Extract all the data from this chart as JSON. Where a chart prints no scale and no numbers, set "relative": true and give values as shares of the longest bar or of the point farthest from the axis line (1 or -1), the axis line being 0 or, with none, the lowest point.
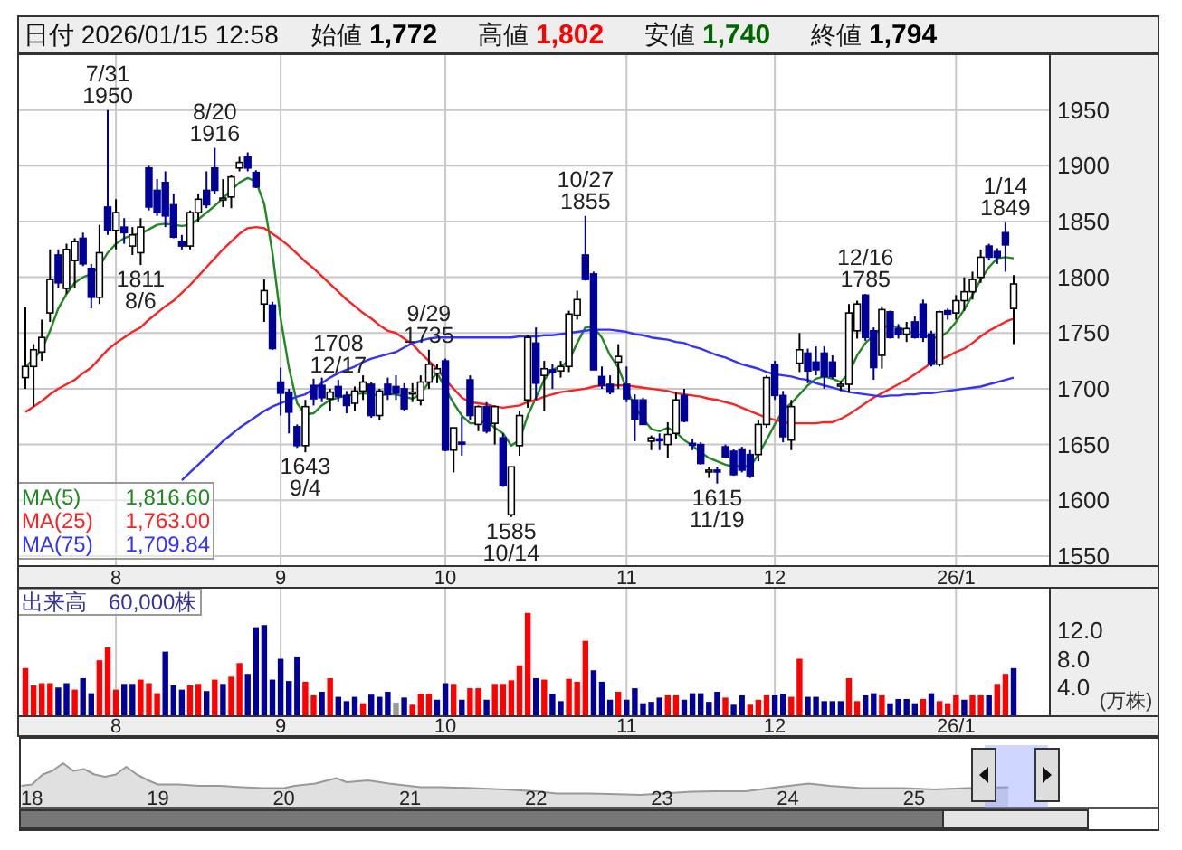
{
  "chart_data": [
    {
      "type": "candlestick",
      "title": "日付 2026/01/15 12:58",
      "annotations": [
        "始値 1,772",
        "高値 1,802",
        "安値 1,740",
        "終値 1,794",
        {
          "text": "7/31\n1950",
          "y": 1950
        },
        {
          "text": "1811\n8/6",
          "y": 1811
        },
        {
          "text": "8/20\n1916",
          "y": 1916
        },
        {
          "text": "1643\n9/4",
          "y": 1643
        },
        {
          "text": "9/29\n1735",
          "y": 1735
        },
        {
          "text": "1585\n10/14",
          "y": 1585
        },
        {
          "text": "10/27\n1855",
          "y": 1855
        },
        {
          "text": "1615\n11/19",
          "y": 1615
        },
        {
          "text": "12/16\n1785",
          "y": 1785
        },
        {
          "text": "1708\n12/17",
          "y": 1708
        },
        {
          "text": "1/14\n1849",
          "y": 1849
        }
      ],
      "categories": [
        null,
        null,
        null,
        null,
        null,
        null,
        null,
        null,
        null,
        null,
        null,
        "8",
        null,
        null,
        null,
        null,
        null,
        null,
        null,
        null,
        null,
        null,
        null,
        null,
        null,
        null,
        null,
        null,
        null,
        null,
        null,
        "9",
        null,
        null,
        null,
        null,
        null,
        null,
        null,
        null,
        null,
        null,
        null,
        null,
        null,
        null,
        null,
        null,
        null,
        null,
        null,
        "10",
        null,
        null,
        null,
        null,
        null,
        null,
        null,
        null,
        null,
        null,
        null,
        null,
        null,
        null,
        null,
        null,
        null,
        null,
        null,
        null,
        null,
        "11",
        null,
        null,
        null,
        null,
        null,
        null,
        null,
        null,
        null,
        null,
        null,
        null,
        null,
        null,
        null,
        null,
        null,
        "12",
        null,
        null,
        null,
        null,
        null,
        null,
        null,
        null,
        null,
        null,
        null,
        null,
        null,
        null,
        null,
        null,
        null,
        null,
        null,
        null,
        null,
        "26/1",
        null,
        null,
        null,
        null,
        null,
        null,
        null
      ],
      "ohlc": [
        [
          1710,
          1773,
          1700,
          1720
        ],
        [
          1720,
          1740,
          1684,
          1735
        ],
        [
          1733,
          1762,
          1725,
          1746
        ],
        [
          1768,
          1825,
          1760,
          1798
        ],
        [
          1820,
          1825,
          1790,
          1795
        ],
        [
          1790,
          1830,
          1785,
          1825
        ],
        [
          1815,
          1835,
          1790,
          1832
        ],
        [
          1835,
          1840,
          1810,
          1812
        ],
        [
          1808,
          1812,
          1772,
          1782
        ],
        [
          1782,
          1847,
          1776,
          1822
        ],
        [
          1863,
          1950,
          1838,
          1842
        ],
        [
          1842,
          1870,
          1825,
          1858
        ],
        [
          1845,
          1853,
          1830,
          1840
        ],
        [
          1828,
          1845,
          1820,
          1838
        ],
        [
          1822,
          1853,
          1811,
          1845
        ],
        [
          1898,
          1900,
          1860,
          1863
        ],
        [
          1878,
          1888,
          1855,
          1858
        ],
        [
          1885,
          1895,
          1845,
          1855
        ],
        [
          1865,
          1875,
          1835,
          1836
        ],
        [
          1832,
          1838,
          1825,
          1828
        ],
        [
          1828,
          1860,
          1825,
          1858
        ],
        [
          1858,
          1875,
          1850,
          1870
        ],
        [
          1878,
          1895,
          1862,
          1865
        ],
        [
          1898,
          1916,
          1875,
          1878
        ],
        [
          1870,
          1888,
          1863,
          1871
        ],
        [
          1872,
          1892,
          1862,
          1890
        ],
        [
          1898,
          1908,
          1895,
          1903
        ],
        [
          1908,
          1912,
          1895,
          1898
        ],
        [
          1894,
          1896,
          1880,
          1881
        ],
        [
          1776,
          1798,
          1760,
          1788
        ],
        [
          1775,
          1778,
          1735,
          1736
        ],
        [
          1706,
          1719,
          1676,
          1696
        ],
        [
          1697,
          1700,
          1660,
          1679
        ],
        [
          1666,
          1668,
          1647,
          1649
        ],
        [
          1649,
          1690,
          1643,
          1684
        ],
        [
          1703,
          1709,
          1685,
          1691
        ],
        [
          1703,
          1710,
          1688,
          1692
        ],
        [
          1691,
          1700,
          1680,
          1697
        ],
        [
          1702,
          1708,
          1688,
          1693
        ],
        [
          1694,
          1698,
          1678,
          1685
        ],
        [
          1687,
          1702,
          1680,
          1698
        ],
        [
          1698,
          1712,
          1690,
          1706
        ],
        [
          1704,
          1706,
          1674,
          1676
        ],
        [
          1676,
          1700,
          1672,
          1698
        ],
        [
          1704,
          1710,
          1690,
          1695
        ],
        [
          1702,
          1712,
          1690,
          1696
        ],
        [
          1700,
          1705,
          1680,
          1682
        ],
        [
          1696,
          1705,
          1688,
          1697
        ],
        [
          1690,
          1712,
          1685,
          1706
        ],
        [
          1706,
          1735,
          1700,
          1722
        ],
        [
          1714,
          1722,
          1705,
          1718
        ],
        [
          1725,
          1727,
          1644,
          1645
        ],
        [
          1645,
          1665,
          1625,
          1665
        ],
        [
          1652,
          1675,
          1640,
          1651
        ],
        [
          1708,
          1712,
          1672,
          1676
        ],
        [
          1668,
          1685,
          1662,
          1684
        ],
        [
          1684,
          1688,
          1660,
          1662
        ],
        [
          1669,
          1685,
          1650,
          1684
        ],
        [
          1656,
          1660,
          1612,
          1613
        ],
        [
          1587,
          1630,
          1585,
          1630
        ],
        [
          1649,
          1680,
          1640,
          1676
        ],
        [
          1690,
          1748,
          1683,
          1746
        ],
        [
          1741,
          1755,
          1690,
          1705
        ],
        [
          1712,
          1725,
          1680,
          1718
        ],
        [
          1717,
          1722,
          1700,
          1715
        ],
        [
          1716,
          1725,
          1710,
          1720
        ],
        [
          1720,
          1770,
          1715,
          1767
        ],
        [
          1766,
          1788,
          1762,
          1780
        ],
        [
          1820,
          1855,
          1797,
          1798
        ],
        [
          1803,
          1805,
          1717,
          1717
        ],
        [
          1711,
          1720,
          1700,
          1703
        ],
        [
          1704,
          1712,
          1695,
          1697
        ],
        [
          1724,
          1740,
          1700,
          1729
        ],
        [
          1704,
          1720,
          1688,
          1691
        ],
        [
          1690,
          1695,
          1653,
          1673
        ],
        [
          1690,
          1692,
          1668,
          1668
        ],
        [
          1653,
          1658,
          1645,
          1656
        ],
        [
          1655,
          1660,
          1645,
          1654
        ],
        [
          1650,
          1670,
          1638,
          1659
        ],
        [
          1660,
          1697,
          1655,
          1690
        ],
        [
          1694,
          1700,
          1670,
          1671
        ],
        [
          1651,
          1655,
          1645,
          1650
        ],
        [
          1650,
          1652,
          1632,
          1633
        ],
        [
          1627,
          1630,
          1620,
          1627
        ],
        [
          1627,
          1630,
          1615,
          1626
        ],
        [
          1648,
          1650,
          1638,
          1639
        ],
        [
          1644,
          1646,
          1622,
          1623
        ],
        [
          1646,
          1648,
          1625,
          1627
        ],
        [
          1641,
          1645,
          1620,
          1622
        ],
        [
          1641,
          1672,
          1635,
          1668
        ],
        [
          1668,
          1712,
          1665,
          1710
        ],
        [
          1722,
          1725,
          1690,
          1694
        ],
        [
          1694,
          1698,
          1652,
          1657
        ],
        [
          1654,
          1690,
          1645,
          1684
        ],
        [
          1723,
          1750,
          1715,
          1735
        ],
        [
          1732,
          1736,
          1705,
          1716
        ],
        [
          1724,
          1738,
          1712,
          1717
        ],
        [
          1732,
          1738,
          1700,
          1711
        ],
        [
          1724,
          1730,
          1709,
          1711
        ],
        [
          1703,
          1707,
          1698,
          1704
        ],
        [
          1704,
          1776,
          1697,
          1768
        ],
        [
          1752,
          1779,
          1745,
          1776
        ],
        [
          1784,
          1785,
          1743,
          1746
        ],
        [
          1752,
          1755,
          1708,
          1719
        ],
        [
          1730,
          1774,
          1718,
          1771
        ],
        [
          1769,
          1770,
          1745,
          1746
        ],
        [
          1754,
          1758,
          1745,
          1749
        ],
        [
          1749,
          1760,
          1742,
          1754
        ],
        [
          1760,
          1765,
          1745,
          1746
        ],
        [
          1776,
          1780,
          1742,
          1746
        ],
        [
          1749,
          1752,
          1720,
          1722
        ],
        [
          1722,
          1770,
          1720,
          1769
        ],
        [
          1770,
          1772,
          1762,
          1767
        ],
        [
          1768,
          1784,
          1762,
          1779
        ],
        [
          1779,
          1800,
          1770,
          1787
        ],
        [
          1787,
          1805,
          1780,
          1798
        ],
        [
          1800,
          1825,
          1795,
          1818
        ],
        [
          1828,
          1830,
          1815,
          1818
        ],
        [
          1823,
          1826,
          1812,
          1818
        ],
        [
          1840,
          1849,
          1805,
          1829
        ],
        [
          1772,
          1802,
          1740,
          1794
        ]
      ],
      "colors": [
        "#ffffff",
        "#ffffff",
        "#ffffff",
        "#ffffff",
        "#000099",
        "#ffffff",
        "#ffffff",
        "#000099",
        "#000099",
        "#ffffff",
        "#000099",
        "#ffffff",
        "#000099",
        "#ffffff",
        "#ffffff",
        "#000099",
        "#000099",
        "#000099",
        "#000099",
        "#000099",
        "#ffffff",
        "#ffffff",
        "#000099",
        "#000099",
        "#ffffff",
        "#ffffff",
        "#ffffff",
        "#000099",
        "#000099",
        "#ffffff",
        "#000099",
        "#000099",
        "#000099",
        "#000099",
        "#ffffff",
        "#000099",
        "#000099",
        "#ffffff",
        "#000099",
        "#000099",
        "#ffffff",
        "#ffffff",
        "#000099",
        "#ffffff",
        "#000099",
        "#000099",
        "#000099",
        "#ffffff",
        "#ffffff",
        "#ffffff",
        "#ffffff",
        "#000099",
        "#ffffff",
        "#000099",
        "#000099",
        "#ffffff",
        "#000099",
        "#ffffff",
        "#000099",
        "#ffffff",
        "#ffffff",
        "#ffffff",
        "#000099",
        "#ffffff",
        "#000099",
        "#ffffff",
        "#ffffff",
        "#ffffff",
        "#000099",
        "#000099",
        "#000099",
        "#000099",
        "#ffffff",
        "#000099",
        "#000099",
        "#000099",
        "#ffffff",
        "#000099",
        "#ffffff",
        "#ffffff",
        "#000099",
        "#000099",
        "#000099",
        "#ffffff",
        "#000099",
        "#000099",
        "#000099",
        "#000099",
        "#000099",
        "#ffffff",
        "#ffffff",
        "#000099",
        "#000099",
        "#ffffff",
        "#ffffff",
        "#000099",
        "#000099",
        "#000099",
        "#000099",
        "#ffffff",
        "#ffffff",
        "#ffffff",
        "#000099",
        "#000099",
        "#ffffff",
        "#000099",
        "#000099",
        "#ffffff",
        "#000099",
        "#000099",
        "#000099",
        "#ffffff",
        "#000099",
        "#ffffff",
        "#ffffff",
        "#ffffff",
        "#ffffff",
        "#000099",
        "#000099",
        "#000099",
        "#ffffff"
      ],
      "series": [
        {
          "type": "line",
          "name": "MA(5) 1,816.60",
          "color": "#228822",
          "values": [
            1719,
            1727,
            1735,
            1752,
            1772,
            1785,
            1795,
            1800,
            1803,
            1810,
            1822,
            1830,
            1835,
            1838,
            1839,
            1843,
            1847,
            1848,
            1847,
            1846,
            1847,
            1852,
            1858,
            1864,
            1871,
            1878,
            1885,
            1889,
            1886,
            1866,
            1822,
            1763,
            1719,
            1687,
            1677,
            1678,
            1685,
            1690,
            1692,
            1694,
            1695,
            1696,
            1695,
            1694,
            1695,
            1695,
            1693,
            1691,
            1695,
            1706,
            1714,
            1700,
            1687,
            1676,
            1669,
            1669,
            1671,
            1665,
            1660,
            1649,
            1654,
            1676,
            1692,
            1708,
            1717,
            1720,
            1725,
            1741,
            1755,
            1755,
            1746,
            1730,
            1719,
            1700,
            1684,
            1673,
            1664,
            1662,
            1665,
            1661,
            1654,
            1649,
            1643,
            1638,
            1635,
            1632,
            1630,
            1631,
            1630,
            1641,
            1654,
            1668,
            1681,
            1687,
            1695,
            1703,
            1709,
            1711,
            1709,
            1706,
            1714,
            1730,
            1741,
            1748,
            1755,
            1757,
            1755,
            1752,
            1749,
            1748,
            1746,
            1746,
            1751,
            1760,
            1771,
            1784,
            1798,
            1809,
            1817,
            1818,
            1817
          ]
        },
        {
          "type": "line",
          "name": "MA(25) 1,763.00",
          "color": "#ff2020",
          "values": [
            1679,
            1684,
            1689,
            1695,
            1700,
            1704,
            1708,
            1714,
            1719,
            1727,
            1735,
            1741,
            1746,
            1751,
            1755,
            1762,
            1768,
            1774,
            1779,
            1786,
            1793,
            1801,
            1809,
            1817,
            1825,
            1832,
            1839,
            1844,
            1845,
            1844,
            1839,
            1834,
            1828,
            1821,
            1814,
            1808,
            1801,
            1794,
            1787,
            1780,
            1774,
            1768,
            1763,
            1757,
            1752,
            1750,
            1745,
            1740,
            1732,
            1725,
            1718,
            1708,
            1700,
            1692,
            1688,
            1687,
            1686,
            1684,
            1683,
            1684,
            1685,
            1688,
            1690,
            1693,
            1695,
            1697,
            1698,
            1699,
            1700,
            1702,
            1703,
            1703,
            1703,
            1703,
            1702,
            1701,
            1700,
            1699,
            1698,
            1696,
            1695,
            1694,
            1693,
            1691,
            1690,
            1688,
            1686,
            1683,
            1680,
            1677,
            1674,
            1672,
            1670,
            1669,
            1669,
            1669,
            1669,
            1670,
            1670,
            1673,
            1677,
            1682,
            1687,
            1692,
            1696,
            1700,
            1704,
            1708,
            1713,
            1718,
            1723,
            1726,
            1729,
            1733,
            1736,
            1741,
            1747,
            1752,
            1756,
            1760,
            1763
          ]
        },
        {
          "type": "line",
          "name": "MA(75) 1,709.84",
          "color": "#3333ff",
          "values": [
            null,
            null,
            null,
            null,
            null,
            null,
            null,
            null,
            null,
            null,
            null,
            null,
            null,
            null,
            null,
            null,
            null,
            null,
            null,
            1618,
            1625,
            1632,
            1639,
            1646,
            1653,
            1659,
            1665,
            1670,
            1675,
            1680,
            1684,
            1687,
            1690,
            1693,
            1695,
            1700,
            1705,
            1710,
            1714,
            1717,
            1720,
            1724,
            1727,
            1729,
            1731,
            1733,
            1737,
            1741,
            1743,
            1745,
            1746,
            1746,
            1746,
            1746,
            1746,
            1746,
            1746,
            1746,
            1746,
            1746,
            1747,
            1747,
            1747,
            1748,
            1748,
            1749,
            1750,
            1751,
            1752,
            1753,
            1753,
            1753,
            1752,
            1751,
            1749,
            1748,
            1746,
            1745,
            1744,
            1742,
            1741,
            1738,
            1736,
            1733,
            1730,
            1728,
            1725,
            1722,
            1720,
            1718,
            1715,
            1713,
            1712,
            1711,
            1709,
            1708,
            1705,
            1703,
            1701,
            1699,
            1697,
            1696,
            1695,
            1694,
            1693,
            1694,
            1694,
            1695,
            1695,
            1696,
            1696,
            1697,
            1698,
            1699,
            1700,
            1701,
            1702,
            1704,
            1706,
            1708,
            1710
          ]
        }
      ],
      "ylim": [
        1541,
        2000
      ],
      "yticks": [
        1550,
        1600,
        1650,
        1700,
        1750,
        1800,
        1850,
        1900,
        1950
      ],
      "grid": true
    },
    {
      "type": "bar",
      "title": "出来高　60,000株",
      "ylabel": "(万株)",
      "categories": [
        null,
        null,
        null,
        null,
        null,
        null,
        null,
        null,
        null,
        null,
        null,
        "8",
        null,
        null,
        null,
        null,
        null,
        null,
        null,
        null,
        null,
        null,
        null,
        null,
        null,
        null,
        null,
        null,
        null,
        null,
        null,
        "9",
        null,
        null,
        null,
        null,
        null,
        null,
        null,
        null,
        null,
        null,
        null,
        null,
        null,
        null,
        null,
        null,
        null,
        null,
        null,
        "10",
        null,
        null,
        null,
        null,
        null,
        null,
        null,
        null,
        null,
        null,
        null,
        null,
        null,
        null,
        null,
        null,
        null,
        null,
        null,
        null,
        null,
        "11",
        null,
        null,
        null,
        null,
        null,
        null,
        null,
        null,
        null,
        null,
        null,
        null,
        null,
        null,
        null,
        null,
        null,
        "12",
        null,
        null,
        null,
        null,
        null,
        null,
        null,
        null,
        null,
        null,
        null,
        null,
        null,
        null,
        null,
        null,
        null,
        null,
        null,
        null,
        null,
        "26/1",
        null,
        null,
        null,
        null,
        null,
        null,
        null
      ],
      "values": [
        6.7,
        4.3,
        4.6,
        4.6,
        4.0,
        4.6,
        3.7,
        5.3,
        3.2,
        7.8,
        9.6,
        3.7,
        4.5,
        4.5,
        5.1,
        4.6,
        3.2,
        9.0,
        4.3,
        3.7,
        4.3,
        4.5,
        3.5,
        5.1,
        4.5,
        5.5,
        7.4,
        5.9,
        12.4,
        12.7,
        5.1,
        8.0,
        4.9,
        8.2,
        4.8,
        2.9,
        3.4,
        5.3,
        2.7,
        2.1,
        2.7,
        1.8,
        3.0,
        2.7,
        3.4,
        1.9,
        2.6,
        1.6,
        3.1,
        3.1,
        2.3,
        4.6,
        4.5,
        2.3,
        3.9,
        3.9,
        2.3,
        4.5,
        4.5,
        5.0,
        7.1,
        14.4,
        5.3,
        5.1,
        3.1,
        2.1,
        5.2,
        4.8,
        10.5,
        6.4,
        4.8,
        2.3,
        3.4,
        2.3,
        3.9,
        1.8,
        2.0,
        2.6,
        2.9,
        2.9,
        2.3,
        3.2,
        3.2,
        2.0,
        3.4,
        2.6,
        1.6,
        2.9,
        1.6,
        2.3,
        2.9,
        2.9,
        3.1,
        2.7,
        8.0,
        2.7,
        2.7,
        2.1,
        2.1,
        2.1,
        5.3,
        2.1,
        2.9,
        3.2,
        2.9,
        1.8,
        2.4,
        2.4,
        1.8,
        2.4,
        3.2,
        2.1,
        1.8,
        2.9,
        2.3,
        2.9,
        2.9,
        2.9,
        4.5,
        5.9,
        6.7
      ],
      "colors": [
        "#ff0000",
        "#ff0000",
        "#ff0000",
        "#ff0000",
        "#000099",
        "#000099",
        "#ff0000",
        "#000099",
        "#000099",
        "#ff0000",
        "#ff0000",
        "#ff0000",
        "#000099",
        "#000099",
        "#ff0000",
        "#ff0000",
        "#ff0000",
        "#000099",
        "#000099",
        "#000099",
        "#ff0000",
        "#ff0000",
        "#000099",
        "#ff0000",
        "#000099",
        "#ff0000",
        "#ff0000",
        "#000099",
        "#000099",
        "#000099",
        "#000099",
        "#000099",
        "#000099",
        "#000099",
        "#ff0000",
        "#ff0000",
        "#000099",
        "#ff0000",
        "#000099",
        "#000099",
        "#000099",
        "#ff0000",
        "#000099",
        "#000099",
        "#000099",
        "#999999",
        "#000099",
        "#ff0000",
        "#ff0000",
        "#ff0000",
        "#000099",
        "#000099",
        "#ff0000",
        "#000099",
        "#ff0000",
        "#ff0000",
        "#000099",
        "#ff0000",
        "#ff0000",
        "#ff0000",
        "#ff0000",
        "#ff0000",
        "#000099",
        "#ff0000",
        "#000099",
        "#000099",
        "#ff0000",
        "#ff0000",
        "#ff0000",
        "#000099",
        "#000099",
        "#000099",
        "#ff0000",
        "#000099",
        "#000099",
        "#000099",
        "#000099",
        "#000099",
        "#ff0000",
        "#ff0000",
        "#000099",
        "#000099",
        "#000099",
        "#000099",
        "#000099",
        "#ff0000",
        "#000099",
        "#000099",
        "#ff0000",
        "#ff0000",
        "#ff0000",
        "#000099",
        "#000099",
        "#ff0000",
        "#ff0000",
        "#000099",
        "#000099",
        "#000099",
        "#000099",
        "#000099",
        "#ff0000",
        "#ff0000",
        "#000099",
        "#000099",
        "#ff0000",
        "#000099",
        "#000099",
        "#000099",
        "#000099",
        "#ff0000",
        "#000099",
        "#ff0000",
        "#ff0000",
        "#ff0000",
        "#000099",
        "#ff0000",
        "#ff0000",
        "#000099",
        "#ff0000",
        "#ff0000",
        "#000099"
      ],
      "ylim": [
        0,
        17.9
      ],
      "yticks": [
        {
          "value": 4,
          "label": "4.0"
        },
        {
          "value": 8,
          "label": "8.0"
        },
        {
          "value": 12,
          "label": "12.0"
        }
      ],
      "grid": "x"
    },
    {
      "type": "area",
      "relative": true,
      "color": "#999999",
      "x": [
        "2017-12",
        "2018-01",
        "2018-02",
        "2018-03",
        "2018-04",
        "2018-05",
        "2018-06",
        "2018-07",
        "2018-08",
        "2018-09",
        "2018-10",
        "2018-11",
        "2018-12",
        "2019-01",
        "2019-03",
        "2019-05",
        "2019-07",
        "2019-09",
        "2019-11",
        "2020-01",
        "2020-02",
        "2020-04",
        "2020-06",
        "2020-07",
        "2020-09",
        "2020-11",
        "2021-02",
        "2021-04",
        "2021-07",
        "2021-10",
        "2022-01",
        "2022-03",
        "2022-06",
        "2022-08",
        "2022-11",
        "2023-01",
        "2023-04",
        "2023-06",
        "2023-09",
        "2023-12",
        "2024-03",
        "2024-05",
        "2024-08",
        "2024-12",
        "2025-03",
        "2025-06",
        "2025-10"
      ],
      "values": [
        0.5,
        0.53,
        0.75,
        0.83,
        1,
        0.83,
        0.87,
        0.75,
        0.7,
        0.75,
        0.92,
        0.75,
        0.63,
        0.53,
        0.53,
        0.5,
        0.5,
        0.47,
        0.45,
        0.45,
        0.5,
        0.55,
        0.67,
        0.58,
        0.62,
        0.55,
        0.47,
        0.47,
        0.45,
        0.42,
        0.38,
        0.33,
        0.33,
        0.32,
        0.3,
        0.33,
        0.37,
        0.38,
        0.38,
        0.47,
        0.55,
        0.5,
        0.45,
        0.45,
        0.42,
        0.45,
        0.47
      ],
      "xlim": [
        "2017-11-27",
        "2026-12-10"
      ],
      "xticks": [
        {
          "value": "2018-01-01",
          "label": "18"
        },
        {
          "value": "2019-01-01",
          "label": "19"
        },
        {
          "value": "2020-01-01",
          "label": "20"
        },
        {
          "value": "2021-01-01",
          "label": "21"
        },
        {
          "value": "2022-01-01",
          "label": "22"
        },
        {
          "value": "2023-01-01",
          "label": "23"
        },
        {
          "value": "2024-01-01",
          "label": "24"
        },
        {
          "value": "2025-01-01",
          "label": "25"
        }
      ]
    }
  ]
}
